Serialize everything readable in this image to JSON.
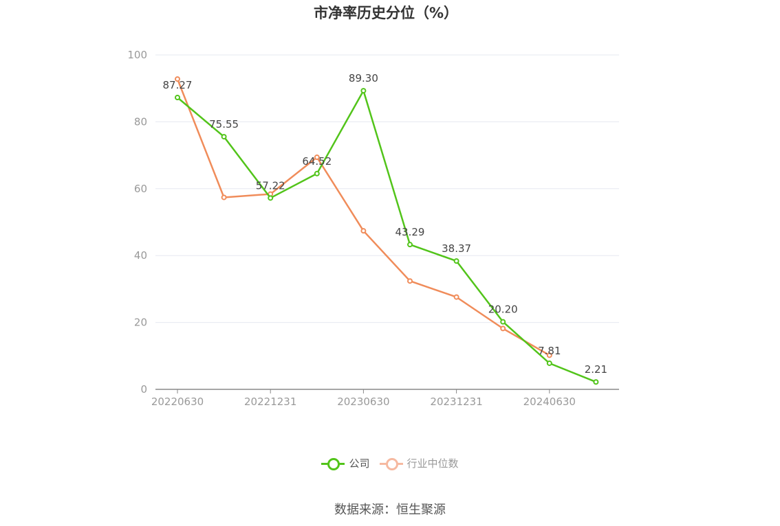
{
  "chart_data": {
    "type": "line",
    "title": "市净率历史分位（%）",
    "x": [
      "20220630",
      "20220930",
      "20221231",
      "20230331",
      "20230630",
      "20230930",
      "20231231",
      "20240331",
      "20240630",
      "20240930"
    ],
    "x_tick_labels": [
      "20220630",
      "20221231",
      "20230630",
      "20231231",
      "20240630"
    ],
    "ylim": [
      0,
      100
    ],
    "y_ticks": [
      0,
      20,
      40,
      60,
      80,
      100
    ],
    "grid": true,
    "legend_position": "bottom",
    "series": [
      {
        "name": "公司",
        "color": "#52c41a",
        "values": [
          87.27,
          75.55,
          57.22,
          64.52,
          89.3,
          43.29,
          38.37,
          20.2,
          7.81,
          2.21
        ],
        "labels": [
          "87.27",
          "75.55",
          "57.22",
          "64.52",
          "89.30",
          "43.29",
          "38.37",
          "20.20",
          "7.81",
          "2.21"
        ]
      },
      {
        "name": "行业中位数",
        "color": "#f08c5a",
        "values": [
          92.8,
          57.4,
          58.4,
          69.4,
          47.4,
          32.4,
          27.6,
          18.2,
          10.2,
          null
        ]
      }
    ]
  },
  "legend": {
    "company_label": "公司",
    "industry_label": "行业中位数",
    "industry_inactive_color": "#f6b9a0"
  },
  "source": "数据来源：恒生聚源"
}
